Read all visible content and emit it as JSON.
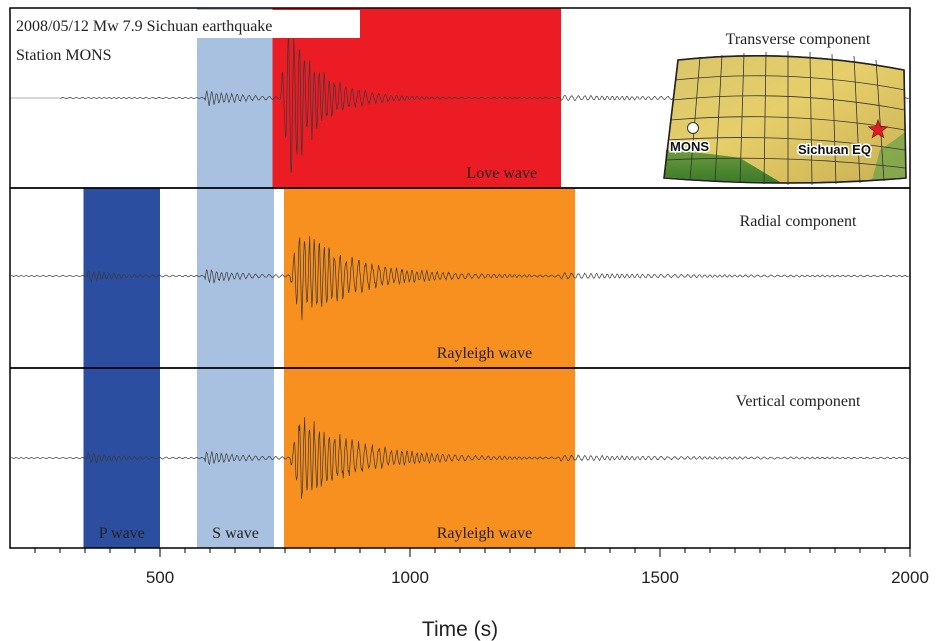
{
  "chart_data": {
    "type": "line",
    "title": "2008/05/12 Mw 7.9 Sichuan earthquake",
    "subtitle": "Station MONS",
    "xlabel": "Time (s)",
    "xlim": [
      200,
      2000
    ],
    "xticks": [
      500,
      1000,
      1500,
      2000
    ],
    "grid": false,
    "colors": {
      "p_wave": "#2b4ea0",
      "s_wave": "#a9c1e0",
      "love_wave": "#ec1c24",
      "rayleigh_wave": "#f7901e",
      "trace": "#3a3a3a",
      "frame": "#000000"
    },
    "panels": [
      {
        "name": "Transverse component",
        "bands": [
          {
            "label": "",
            "kind": "s_wave",
            "start": 574,
            "end": 725
          },
          {
            "label": "Love wave",
            "kind": "love_wave",
            "start": 725,
            "end": 1302
          }
        ]
      },
      {
        "name": "Radial component",
        "bands": [
          {
            "label": "",
            "kind": "p_wave",
            "start": 347,
            "end": 500
          },
          {
            "label": "",
            "kind": "s_wave",
            "start": 574,
            "end": 728
          },
          {
            "label": "Rayleigh wave",
            "kind": "rayleigh_wave",
            "start": 748,
            "end": 1330
          }
        ]
      },
      {
        "name": "Vertical component",
        "bands": [
          {
            "label": "P wave",
            "kind": "p_wave",
            "start": 347,
            "end": 500
          },
          {
            "label": "S wave",
            "kind": "s_wave",
            "start": 574,
            "end": 728
          },
          {
            "label": "Rayleigh wave",
            "kind": "rayleigh_wave",
            "start": 748,
            "end": 1330
          }
        ]
      }
    ],
    "inset_map": {
      "station_label": "MONS",
      "event_label": "Sichuan EQ"
    }
  }
}
